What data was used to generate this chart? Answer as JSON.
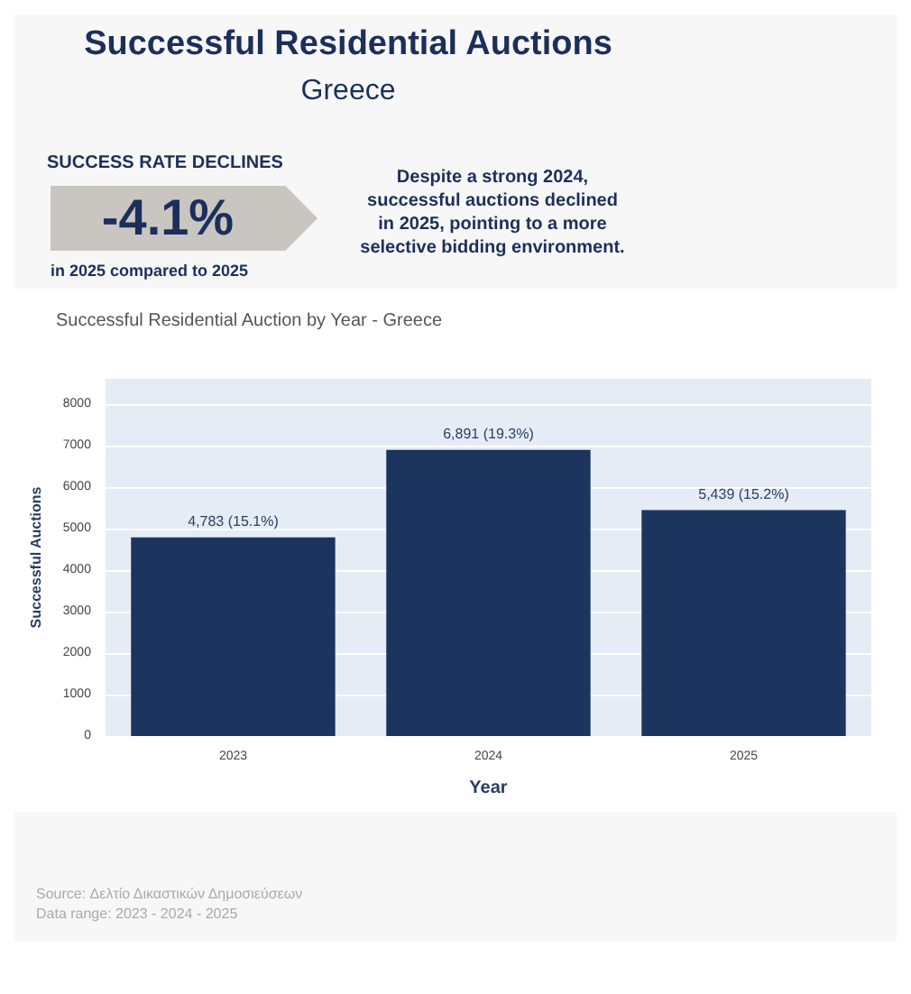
{
  "chart_data": {
    "type": "bar",
    "title": "Successful Residential Auctions",
    "subtitle": "Greece",
    "annotations": [
      "SUCCESS RATE DECLINES",
      "-4.1%",
      "in 2025 compared to 2025",
      "Despite a strong 2024, successful auctions declined in 2025, pointing to a more selective bidding environment.",
      "Successful Residential Auction by Year - Greece",
      "Source: Δελτίο Δικαστικών Δημοσιεύσεων",
      "Data range: 2023 - 2024 - 2025"
    ],
    "xlabel": "Year",
    "ylabel": "Successful Auctions",
    "categories": [
      "2023",
      "2024",
      "2025"
    ],
    "values": [
      4783,
      6891,
      5439
    ],
    "value_labels": [
      "4,783 (15.1%)",
      "6,891 (19.3%)",
      "5,439 (15.2%)"
    ],
    "color": "#1c355e",
    "ylim": [
      0,
      8600
    ],
    "yticks": [
      0,
      1000,
      2000,
      3000,
      4000,
      5000,
      6000,
      7000,
      8000
    ],
    "grid": "y"
  }
}
